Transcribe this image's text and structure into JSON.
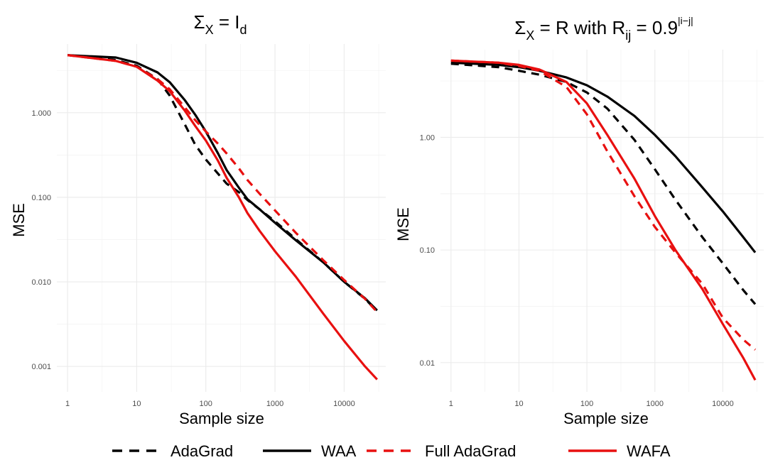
{
  "chart_data": [
    {
      "type": "line",
      "title_symbol": "Σ",
      "title_sub": "X",
      "title_rest": " = I",
      "title_sub2": "d",
      "xlabel": "Sample size",
      "ylabel": "MSE",
      "xscale": "log10",
      "yscale": "log10",
      "xlim": [
        0.7,
        40000
      ],
      "ylim": [
        0.0005,
        6.5
      ],
      "xticks": [
        1,
        10,
        100,
        1000,
        10000
      ],
      "xticklabels": [
        "1",
        "10",
        "100",
        "1000",
        "10000"
      ],
      "yticks": [
        0.001,
        0.01,
        0.1,
        1
      ],
      "yticklabels": [
        "0.001",
        "0.010",
        "0.100",
        "1.000"
      ],
      "series": [
        {
          "name": "AdaGrad",
          "color": "#000000",
          "dash": "dashed",
          "x": [
            1,
            5,
            10,
            20,
            30,
            50,
            70,
            100,
            150,
            200,
            300,
            400,
            600,
            1000,
            2000,
            5000,
            10000,
            20000,
            30000
          ],
          "y": [
            4.8,
            4.2,
            3.6,
            2.5,
            1.6,
            0.72,
            0.42,
            0.28,
            0.19,
            0.145,
            0.115,
            0.093,
            0.072,
            0.052,
            0.032,
            0.017,
            0.01,
            0.0063,
            0.0045
          ]
        },
        {
          "name": "WAA",
          "color": "#000000",
          "dash": "solid",
          "x": [
            1,
            5,
            10,
            20,
            30,
            50,
            70,
            100,
            150,
            200,
            300,
            400,
            600,
            1000,
            2000,
            5000,
            10000,
            20000,
            30000
          ],
          "y": [
            4.8,
            4.5,
            3.9,
            3.0,
            2.3,
            1.4,
            0.95,
            0.6,
            0.33,
            0.21,
            0.13,
            0.095,
            0.072,
            0.05,
            0.031,
            0.017,
            0.01,
            0.0064,
            0.0046
          ]
        },
        {
          "name": "Full AdaGrad",
          "color": "#e81010",
          "dash": "dashed",
          "x": [
            1,
            5,
            10,
            20,
            30,
            50,
            70,
            100,
            150,
            200,
            300,
            400,
            600,
            1000,
            2000,
            5000,
            10000,
            20000,
            30000
          ],
          "y": [
            4.8,
            4.1,
            3.5,
            2.5,
            1.9,
            1.15,
            0.82,
            0.6,
            0.43,
            0.33,
            0.22,
            0.16,
            0.11,
            0.07,
            0.038,
            0.018,
            0.0105,
            0.0063,
            0.0044
          ]
        },
        {
          "name": "WAFA",
          "color": "#e81010",
          "dash": "solid",
          "x": [
            1,
            5,
            10,
            20,
            30,
            50,
            70,
            100,
            150,
            200,
            300,
            400,
            600,
            1000,
            2000,
            5000,
            10000,
            20000,
            30000
          ],
          "y": [
            4.8,
            4.1,
            3.5,
            2.4,
            1.8,
            1.05,
            0.7,
            0.47,
            0.27,
            0.17,
            0.1,
            0.065,
            0.04,
            0.023,
            0.0115,
            0.0042,
            0.002,
            0.001,
            0.0007
          ]
        }
      ]
    },
    {
      "type": "line",
      "title_symbol": "Σ",
      "title_sub": "X",
      "title_rest": " = R with R",
      "title_sub2": "ij",
      "title_rest2": " = 0.9",
      "title_sup": "|i−j|",
      "xlabel": "Sample size",
      "ylabel": "MSE",
      "xscale": "log10",
      "yscale": "log10",
      "xlim": [
        0.7,
        40000
      ],
      "ylim": [
        0.0055,
        6.0
      ],
      "xticks": [
        1,
        10,
        100,
        1000,
        10000
      ],
      "xticklabels": [
        "1",
        "10",
        "100",
        "1000",
        "10000"
      ],
      "yticks": [
        0.01,
        0.1,
        1
      ],
      "yticklabels": [
        "0.01",
        "0.10",
        "1.00"
      ],
      "series": [
        {
          "name": "AdaGrad",
          "color": "#000000",
          "dash": "dashed",
          "x": [
            1,
            5,
            10,
            20,
            50,
            100,
            200,
            500,
            1000,
            2000,
            5000,
            10000,
            20000,
            30000
          ],
          "y": [
            4.5,
            4.2,
            3.9,
            3.6,
            3.1,
            2.5,
            1.8,
            0.95,
            0.52,
            0.28,
            0.13,
            0.076,
            0.044,
            0.033
          ]
        },
        {
          "name": "WAA",
          "color": "#000000",
          "dash": "solid",
          "x": [
            1,
            5,
            10,
            20,
            50,
            100,
            200,
            500,
            1000,
            2000,
            5000,
            10000,
            20000,
            30000
          ],
          "y": [
            4.6,
            4.4,
            4.2,
            3.9,
            3.4,
            2.9,
            2.3,
            1.55,
            1.05,
            0.68,
            0.36,
            0.22,
            0.13,
            0.095
          ]
        },
        {
          "name": "Full AdaGrad",
          "color": "#e81010",
          "dash": "dashed",
          "x": [
            1,
            5,
            10,
            20,
            50,
            100,
            200,
            500,
            1000,
            2000,
            5000,
            10000,
            20000,
            30000
          ],
          "y": [
            4.8,
            4.6,
            4.3,
            3.9,
            2.8,
            1.6,
            0.75,
            0.3,
            0.16,
            0.095,
            0.05,
            0.025,
            0.016,
            0.013
          ]
        },
        {
          "name": "WAFA",
          "color": "#e81010",
          "dash": "solid",
          "x": [
            1,
            5,
            10,
            20,
            50,
            100,
            200,
            500,
            1000,
            2000,
            5000,
            10000,
            20000,
            30000
          ],
          "y": [
            4.8,
            4.6,
            4.4,
            4.0,
            3.1,
            2.0,
            1.05,
            0.43,
            0.2,
            0.1,
            0.045,
            0.022,
            0.011,
            0.007
          ]
        }
      ]
    }
  ],
  "legend": {
    "placement": "bottom",
    "items": [
      {
        "label": "AdaGrad",
        "color": "#000000",
        "dash": "dashed"
      },
      {
        "label": "WAA",
        "color": "#000000",
        "dash": "solid"
      },
      {
        "label": "Full AdaGrad",
        "color": "#e81010",
        "dash": "dashed"
      },
      {
        "label": "WAFA",
        "color": "#e81010",
        "dash": "solid"
      }
    ]
  }
}
